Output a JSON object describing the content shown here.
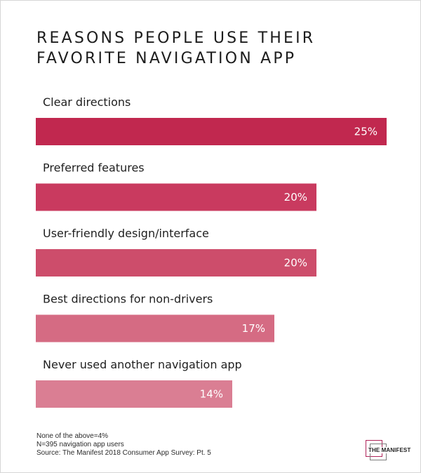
{
  "chart_data": {
    "type": "bar",
    "orientation": "horizontal",
    "title": "REASONS PEOPLE USE THEIR FAVORITE NAVIGATION APP",
    "title_lines": [
      "REASONS PEOPLE USE THEIR",
      "FAVORITE NAVIGATION APP"
    ],
    "categories": [
      "Clear directions",
      "Preferred features",
      "User-friendly design/interface",
      "Best directions for non-drivers",
      "Never used another navigation app"
    ],
    "values": [
      25,
      20,
      20,
      17,
      14
    ],
    "value_labels": [
      "25%",
      "20%",
      "20%",
      "17%",
      "14%"
    ],
    "unit": "%",
    "xlim": [
      0,
      25
    ],
    "grid": false,
    "legend": "none",
    "bar_colors": [
      "#c1284f",
      "#c93a5f",
      "#cd4d6b",
      "#d56b83",
      "#da7e93"
    ]
  },
  "footnotes": [
    "None of the above=4%",
    "N=395 navigation app users",
    "Source: The Manifest 2018 Consumer App Survey: Pt. 5"
  ],
  "logo": {
    "text": "THE MANIFEST",
    "icon": "overlapping-squares-icon",
    "accent_color": "#b0245a"
  }
}
